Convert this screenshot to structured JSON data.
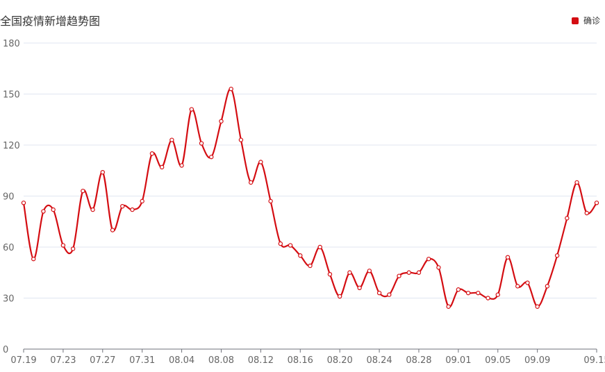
{
  "chart_data": {
    "type": "line",
    "title": "全国疫情新增趋势图",
    "xlabel": "",
    "ylabel": "",
    "ylim": [
      0,
      180
    ],
    "yticks": [
      0,
      30,
      60,
      90,
      120,
      150,
      180
    ],
    "grid": true,
    "legend_position": "top-right",
    "x": [
      "07.19",
      "07.20",
      "07.21",
      "07.22",
      "07.23",
      "07.24",
      "07.25",
      "07.26",
      "07.27",
      "07.28",
      "07.29",
      "07.30",
      "07.31",
      "08.01",
      "08.02",
      "08.03",
      "08.04",
      "08.05",
      "08.06",
      "08.07",
      "08.08",
      "08.09",
      "08.10",
      "08.11",
      "08.12",
      "08.13",
      "08.14",
      "08.15",
      "08.16",
      "08.17",
      "08.18",
      "08.19",
      "08.20",
      "08.21",
      "08.22",
      "08.23",
      "08.24",
      "08.25",
      "08.26",
      "08.27",
      "08.28",
      "08.29",
      "08.30",
      "08.31",
      "09.01",
      "09.02",
      "09.03",
      "09.04",
      "09.05",
      "09.06",
      "09.07",
      "09.08",
      "09.09",
      "09.10",
      "09.11",
      "09.12",
      "09.13",
      "09.14",
      "09.15"
    ],
    "x_tick_labels": [
      "07.19",
      "07.23",
      "07.27",
      "07.31",
      "08.04",
      "08.08",
      "08.12",
      "08.16",
      "08.20",
      "08.24",
      "08.28",
      "09.01",
      "09.05",
      "09.09",
      "09.15"
    ],
    "series": [
      {
        "name": "确诊",
        "color": "#d40d12",
        "values": [
          86,
          53,
          81,
          82,
          61,
          59,
          93,
          82,
          104,
          70,
          84,
          82,
          87,
          115,
          107,
          123,
          108,
          141,
          121,
          113,
          134,
          153,
          123,
          98,
          110,
          87,
          62,
          61,
          55,
          49,
          60,
          44,
          31,
          45,
          36,
          46,
          33,
          32,
          43,
          45,
          45,
          53,
          48,
          25,
          35,
          33,
          33,
          30,
          32,
          54,
          37,
          39,
          25,
          37,
          55,
          77,
          98,
          80,
          86
        ]
      }
    ]
  }
}
